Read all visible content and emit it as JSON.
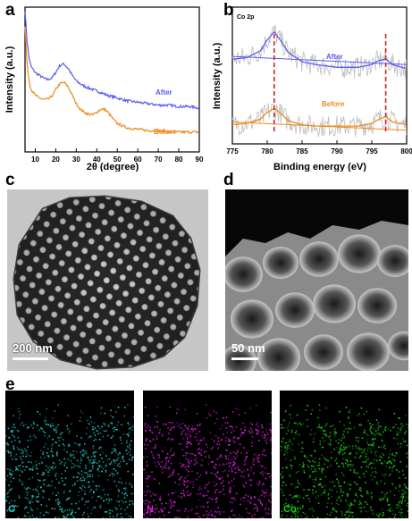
{
  "panel_labels": {
    "a": "a",
    "b": "b",
    "c": "c",
    "d": "d",
    "e": "e"
  },
  "chart_data": [
    {
      "type": "line",
      "panel": "a",
      "xlabel": "2θ (degree)",
      "ylabel": "Intensity (a.u.)",
      "xlim": [
        5,
        90
      ],
      "xticks": [
        10,
        20,
        30,
        40,
        50,
        60,
        70,
        80,
        90
      ],
      "series": [
        {
          "name": "After",
          "color": "#5b5bf0",
          "x": [
            5,
            6,
            7,
            8,
            10,
            12,
            14,
            16,
            18,
            20,
            22,
            24,
            26,
            28,
            30,
            33,
            36,
            40,
            45,
            50,
            55,
            60,
            65,
            70,
            75,
            80,
            85,
            90
          ],
          "y": [
            1.0,
            0.78,
            0.66,
            0.6,
            0.56,
            0.54,
            0.52,
            0.51,
            0.52,
            0.56,
            0.61,
            0.62,
            0.59,
            0.54,
            0.5,
            0.47,
            0.45,
            0.43,
            0.4,
            0.38,
            0.36,
            0.35,
            0.34,
            0.33,
            0.33,
            0.32,
            0.32,
            0.31
          ]
        },
        {
          "name": "Before",
          "color": "#f08a1a",
          "x": [
            5,
            6,
            7,
            8,
            10,
            12,
            14,
            16,
            18,
            20,
            22,
            24,
            26,
            28,
            30,
            32,
            35,
            38,
            40,
            42,
            44,
            46,
            48,
            50,
            55,
            60,
            65,
            70,
            75,
            80,
            85,
            90
          ],
          "y": [
            0.88,
            0.62,
            0.5,
            0.44,
            0.4,
            0.38,
            0.37,
            0.37,
            0.39,
            0.44,
            0.48,
            0.49,
            0.46,
            0.4,
            0.34,
            0.3,
            0.27,
            0.26,
            0.28,
            0.3,
            0.3,
            0.27,
            0.23,
            0.2,
            0.17,
            0.16,
            0.15,
            0.15,
            0.14,
            0.14,
            0.14,
            0.14
          ]
        }
      ]
    },
    {
      "type": "line",
      "panel": "b",
      "title": "Co 2p",
      "xlabel": "Binding energy (eV)",
      "ylabel": "Intensity (a.u.)",
      "xlim": [
        775,
        800
      ],
      "xticks": [
        775,
        780,
        785,
        790,
        795,
        800
      ],
      "reference_lines": [
        781,
        797
      ],
      "series": [
        {
          "name": "After",
          "color": "#5b5bf0",
          "x": [
            775,
            777,
            779,
            780,
            781,
            782,
            783,
            785,
            787,
            790,
            793,
            795,
            796,
            797,
            798,
            800
          ],
          "y": [
            0.62,
            0.63,
            0.68,
            0.76,
            0.82,
            0.75,
            0.67,
            0.6,
            0.58,
            0.56,
            0.56,
            0.58,
            0.61,
            0.62,
            0.58,
            0.55
          ]
        },
        {
          "name": "Before",
          "color": "#f08a1a",
          "x": [
            775,
            777,
            779,
            780,
            781,
            782,
            783,
            785,
            787,
            790,
            793,
            795,
            796,
            797,
            798,
            800
          ],
          "y": [
            0.14,
            0.15,
            0.18,
            0.23,
            0.26,
            0.22,
            0.17,
            0.14,
            0.13,
            0.13,
            0.13,
            0.15,
            0.18,
            0.2,
            0.16,
            0.14
          ]
        }
      ]
    }
  ],
  "images": {
    "c": {
      "scale_bar": "200 nm"
    },
    "d": {
      "scale_bar": "50 nm"
    },
    "e": {
      "maps": [
        {
          "element": "C",
          "color": "#22c8c8"
        },
        {
          "element": "N",
          "color": "#e020e0"
        },
        {
          "element": "Co",
          "color": "#18d018"
        }
      ]
    }
  }
}
